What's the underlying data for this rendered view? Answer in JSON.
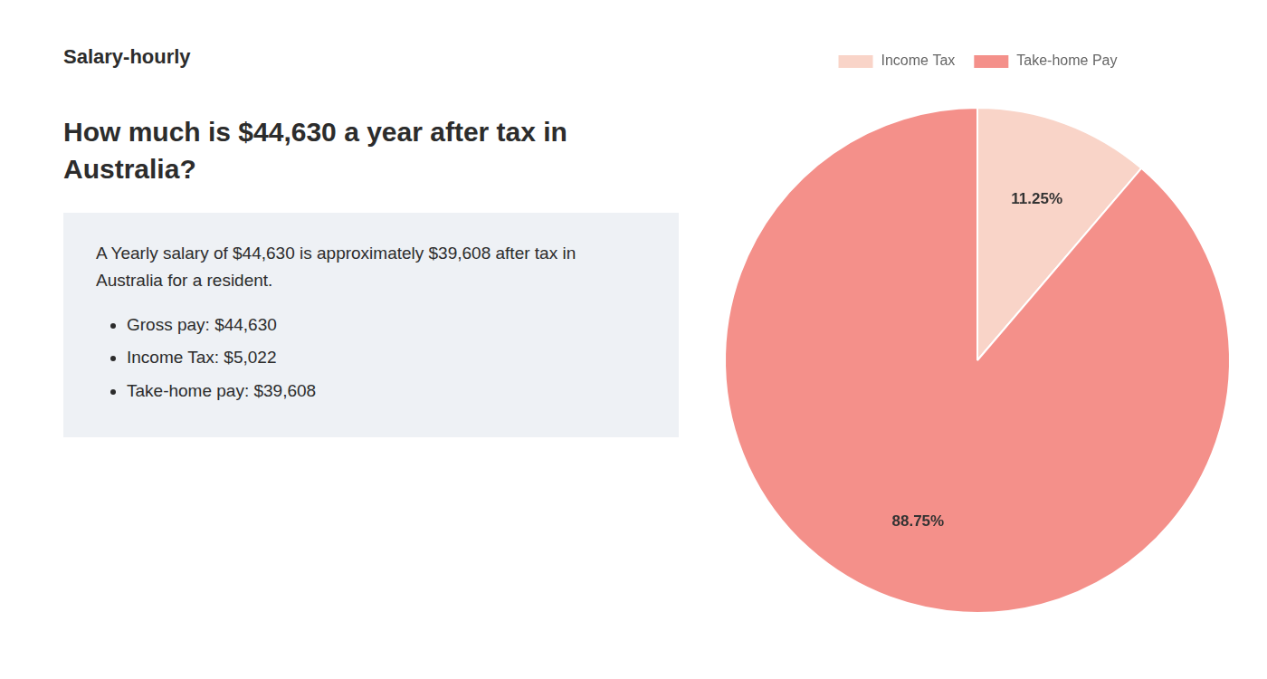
{
  "chart_data": {
    "type": "pie",
    "title": [
      "How much is $44,630 a year after tax in",
      "Australia?"
    ],
    "annotations": [
      "Salary-hourly",
      "A Yearly salary of $44,630 is approximately $39,608 after tax in Australia for a resident.",
      "Gross pay: $44,630",
      "Income Tax: $5,022",
      "Take-home pay: $39,608"
    ],
    "categories": [
      "Income Tax",
      "Take-home Pay"
    ],
    "values": [
      11.25,
      88.75
    ],
    "value_labels": [
      "11.25%",
      "88.75%"
    ],
    "colors": [
      "#f9d4c8",
      "#f4908a"
    ],
    "data_labels": true,
    "legend": "top"
  }
}
